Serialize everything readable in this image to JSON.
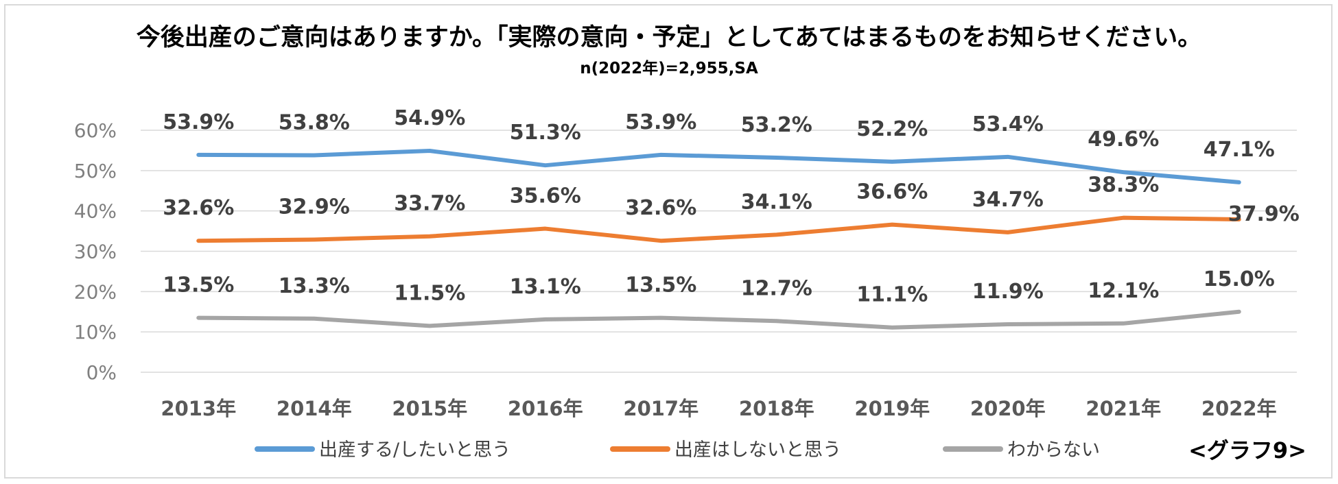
{
  "chart_data": {
    "type": "line",
    "title": "今後出産のご意向はありますか。「実際の意向・予定」としてあてはまるものをお知らせください。",
    "subtitle": "n(2022年)=2,955,SA",
    "categories": [
      "2013年",
      "2014年",
      "2015年",
      "2016年",
      "2017年",
      "2018年",
      "2019年",
      "2020年",
      "2021年",
      "2022年"
    ],
    "y_ticks": [
      "0%",
      "10%",
      "20%",
      "30%",
      "40%",
      "50%",
      "60%"
    ],
    "ylim": [
      0,
      60
    ],
    "grid": true,
    "legend_position": "bottom",
    "series": [
      {
        "name": "出産する/したいと思う",
        "color": "#5b9bd5",
        "values": [
          53.9,
          53.8,
          54.9,
          51.3,
          53.9,
          53.2,
          52.2,
          53.4,
          49.6,
          47.1
        ],
        "labels": [
          "53.9%",
          "53.8%",
          "54.9%",
          "51.3%",
          "53.9%",
          "53.2%",
          "52.2%",
          "53.4%",
          "49.6%",
          "47.1%"
        ]
      },
      {
        "name": "出産はしないと思う",
        "color": "#ed7d31",
        "values": [
          32.6,
          32.9,
          33.7,
          35.6,
          32.6,
          34.1,
          36.6,
          34.7,
          38.3,
          37.9
        ],
        "labels": [
          "32.6%",
          "32.9%",
          "33.7%",
          "35.6%",
          "32.6%",
          "34.1%",
          "36.6%",
          "34.7%",
          "38.3%",
          "37.9%"
        ]
      },
      {
        "name": "わからない",
        "color": "#a5a5a5",
        "values": [
          13.5,
          13.3,
          11.5,
          13.1,
          13.5,
          12.7,
          11.1,
          11.9,
          12.1,
          15.0
        ],
        "labels": [
          "13.5%",
          "13.3%",
          "11.5%",
          "13.1%",
          "13.5%",
          "12.7%",
          "11.1%",
          "11.9%",
          "12.1%",
          "15.0%"
        ]
      }
    ]
  },
  "graph_label": "<グラフ9>"
}
